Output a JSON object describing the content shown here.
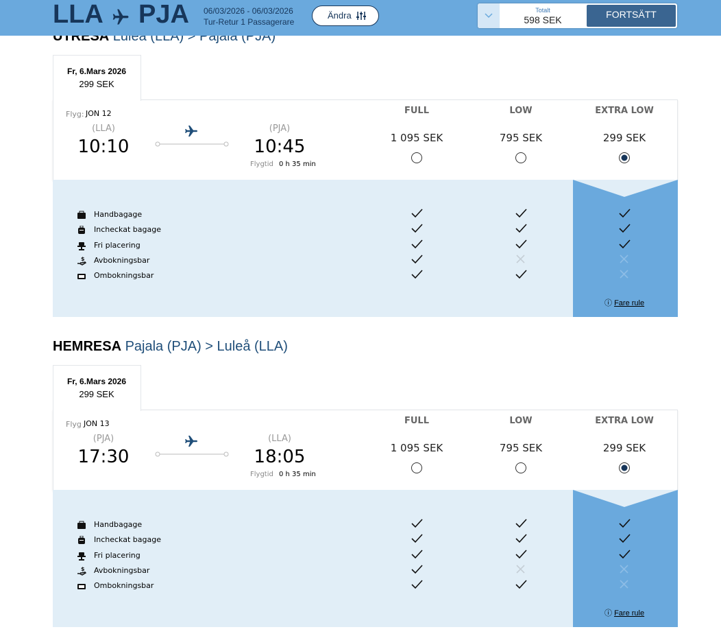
{
  "header": {
    "route_from": "LLA",
    "route_to": "PJA",
    "dates": "06/03/2026 - 06/03/2026",
    "trip_info": "Tur-Retur 1 Passagerare",
    "change_button": "Ändra",
    "total_label": "Totalt",
    "total_value": "598 SEK",
    "continue_button": "FORTSÄTT"
  },
  "sections": [
    {
      "title": "UTRESA",
      "route": "Luleå (LLA) > Pajala (PJA)",
      "tab_date": "Fr, 6.Mars 2026",
      "tab_price": "299 SEK",
      "flight_label": "Flyg:",
      "flight_number": "JON 12",
      "dep_code": "(LLA)",
      "dep_time": "10:10",
      "arr_code": "(PJA)",
      "arr_time": "10:45",
      "duration_label": "Flygtid",
      "duration": "0 h 35 min",
      "fares": [
        {
          "name": "FULL",
          "price": "1 095 SEK",
          "selected": false
        },
        {
          "name": "LOW",
          "price": "795 SEK",
          "selected": false
        },
        {
          "name": "EXTRA LOW",
          "price": "299 SEK",
          "selected": true
        }
      ],
      "features": [
        {
          "name": "Handbagage",
          "included": [
            true,
            true,
            true
          ]
        },
        {
          "name": "Incheckat bagage",
          "included": [
            true,
            true,
            true
          ]
        },
        {
          "name": "Fri placering",
          "included": [
            true,
            true,
            true
          ]
        },
        {
          "name": "Avbokningsbar",
          "included": [
            true,
            false,
            false
          ]
        },
        {
          "name": "Ombokningsbar",
          "included": [
            true,
            true,
            false
          ]
        }
      ],
      "fare_rule": "Fare rule"
    },
    {
      "title": "HEMRESA",
      "route": "Pajala (PJA) > Luleå (LLA)",
      "tab_date": "Fr, 6.Mars 2026",
      "tab_price": "299 SEK",
      "flight_label": "Flyg",
      "flight_number": "JON 13",
      "dep_code": "(PJA)",
      "dep_time": "17:30",
      "arr_code": "(LLA)",
      "arr_time": "18:05",
      "duration_label": "Flygtid",
      "duration": "0 h 35 min",
      "fares": [
        {
          "name": "FULL",
          "price": "1 095 SEK",
          "selected": false
        },
        {
          "name": "LOW",
          "price": "795 SEK",
          "selected": false
        },
        {
          "name": "EXTRA LOW",
          "price": "299 SEK",
          "selected": true
        }
      ],
      "features": [
        {
          "name": "Handbagage",
          "included": [
            true,
            true,
            true
          ]
        },
        {
          "name": "Incheckat bagage",
          "included": [
            true,
            true,
            true
          ]
        },
        {
          "name": "Fri placering",
          "included": [
            true,
            true,
            true
          ]
        },
        {
          "name": "Avbokningsbar",
          "included": [
            true,
            false,
            false
          ]
        },
        {
          "name": "Ombokningsbar",
          "included": [
            true,
            true,
            false
          ]
        }
      ],
      "fare_rule": "Fare rule"
    }
  ]
}
